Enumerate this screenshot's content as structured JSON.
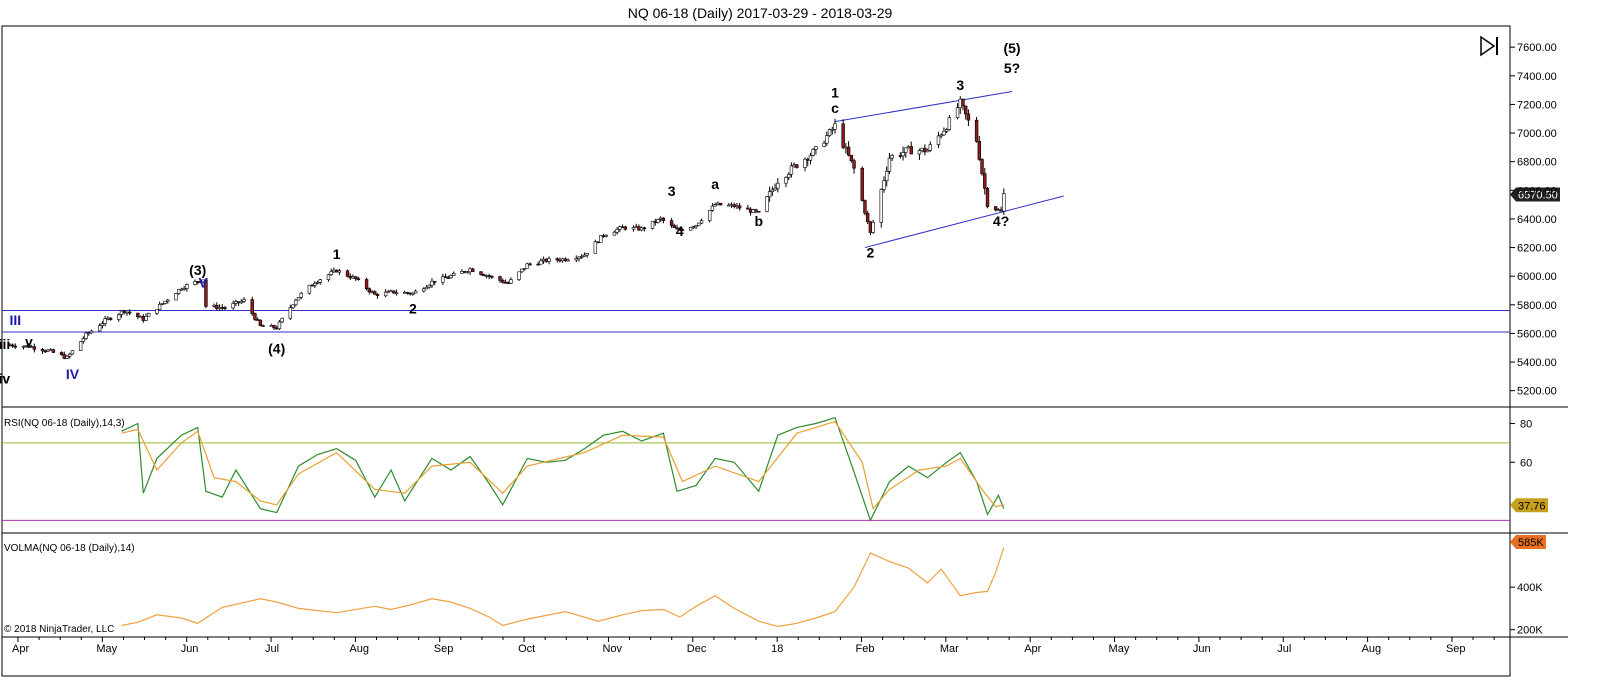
{
  "header": {
    "title": "NQ 06-18 (Daily)  2017-03-29 - 2018-03-29"
  },
  "toolbar": {
    "scroll_end_icon": "scroll-to-end-icon"
  },
  "copyright": "© 2018 NinjaTrader, LLC",
  "colors": {
    "frame": "#000000",
    "candle_up": "#ffffff",
    "candle_down": "#8b1a1a",
    "wick": "#000000",
    "channel": "#3030c8",
    "rsi": "#2e8b2e",
    "rsi_avg": "#e8a030",
    "rsi_70": "#9bbb30",
    "rsi_30": "#b030b0",
    "volma": "#f0a040",
    "price_badge": "#222222",
    "rsi_badge": "#c8a020",
    "vol_badge": "#e87020"
  },
  "chart_data": [
    {
      "type": "candlestick",
      "panel": "price",
      "title": "NQ 06-18 (Daily)  2017-03-29 - 2018-03-29",
      "x_labels": [
        "Apr",
        "May",
        "Jun",
        "Jul",
        "Aug",
        "Sep",
        "Oct",
        "Nov",
        "Dec",
        "18",
        "Feb",
        "Mar",
        "Apr",
        "May",
        "Jun",
        "Jul",
        "Aug",
        "Sep"
      ],
      "y_ticks": [
        "7600.00",
        "7400.00",
        "7200.00",
        "7000.00",
        "6800.00",
        "6600.00",
        "6400.00",
        "6200.00",
        "6000.00",
        "5800.00",
        "5600.00",
        "5400.00",
        "5200.00"
      ],
      "ylim": [
        5100,
        7720
      ],
      "last_price": "6570.50",
      "close_path": [
        [
          "2017-03-29",
          5520
        ],
        [
          "2017-04-05",
          5510
        ],
        [
          "2017-04-12",
          5480
        ],
        [
          "2017-04-19",
          5430
        ],
        [
          "2017-04-26",
          5590
        ],
        [
          "2017-05-03",
          5690
        ],
        [
          "2017-05-10",
          5760
        ],
        [
          "2017-05-17",
          5700
        ],
        [
          "2017-05-24",
          5810
        ],
        [
          "2017-05-31",
          5920
        ],
        [
          "2017-06-08",
          5980
        ],
        [
          "2017-06-09",
          5790
        ],
        [
          "2017-06-16",
          5780
        ],
        [
          "2017-06-23",
          5830
        ],
        [
          "2017-06-29",
          5650
        ],
        [
          "2017-07-05",
          5640
        ],
        [
          "2017-07-12",
          5840
        ],
        [
          "2017-07-19",
          5960
        ],
        [
          "2017-07-27",
          6040
        ],
        [
          "2017-08-03",
          5980
        ],
        [
          "2017-08-10",
          5870
        ],
        [
          "2017-08-17",
          5890
        ],
        [
          "2017-08-24",
          5880
        ],
        [
          "2017-08-31",
          5960
        ],
        [
          "2017-09-07",
          6000
        ],
        [
          "2017-09-14",
          6050
        ],
        [
          "2017-09-21",
          6000
        ],
        [
          "2017-09-28",
          5950
        ],
        [
          "2017-10-05",
          6080
        ],
        [
          "2017-10-12",
          6110
        ],
        [
          "2017-10-19",
          6120
        ],
        [
          "2017-10-26",
          6150
        ],
        [
          "2017-11-02",
          6290
        ],
        [
          "2017-11-09",
          6340
        ],
        [
          "2017-11-16",
          6330
        ],
        [
          "2017-11-23",
          6400
        ],
        [
          "2017-11-29",
          6320
        ],
        [
          "2017-12-06",
          6360
        ],
        [
          "2017-12-13",
          6500
        ],
        [
          "2017-12-20",
          6490
        ],
        [
          "2017-12-29",
          6440
        ],
        [
          "2018-01-05",
          6670
        ],
        [
          "2018-01-12",
          6780
        ],
        [
          "2018-01-19",
          6880
        ],
        [
          "2018-01-26",
          7050
        ],
        [
          "2018-02-02",
          6750
        ],
        [
          "2018-02-08",
          6300
        ],
        [
          "2018-02-15",
          6830
        ],
        [
          "2018-02-22",
          6880
        ],
        [
          "2018-03-01",
          6880
        ],
        [
          "2018-03-08",
          7050
        ],
        [
          "2018-03-13",
          7210
        ],
        [
          "2018-03-19",
          6950
        ],
        [
          "2018-03-23",
          6500
        ],
        [
          "2018-03-28",
          6450
        ],
        [
          "2018-03-29",
          6570
        ]
      ],
      "horizontal_lines": [
        5760,
        5610
      ],
      "channel_lines": [
        {
          "from": [
            "2018-01-26",
            7080
          ],
          "to": [
            "2018-04-01",
            7290
          ]
        },
        {
          "from": [
            "2018-02-06",
            6200
          ],
          "to": [
            "2018-04-20",
            6560
          ]
        }
      ],
      "annotations": [
        {
          "text": "(5)",
          "date": "2018-04-01",
          "price": 7560,
          "color": "black"
        },
        {
          "text": "5?",
          "date": "2018-04-01",
          "price": 7420,
          "color": "black"
        },
        {
          "text": "3",
          "date": "2018-03-13",
          "price": 7300,
          "color": "black"
        },
        {
          "text": "1",
          "date": "2018-01-26",
          "price": 7250,
          "color": "black"
        },
        {
          "text": "c",
          "date": "2018-01-26",
          "price": 7140,
          "color": "black"
        },
        {
          "text": "a",
          "date": "2017-12-13",
          "price": 6610,
          "color": "black"
        },
        {
          "text": "3",
          "date": "2017-11-27",
          "price": 6560,
          "color": "black"
        },
        {
          "text": "4",
          "date": "2017-11-30",
          "price": 6280,
          "color": "black"
        },
        {
          "text": "b",
          "date": "2017-12-29",
          "price": 6350,
          "color": "black"
        },
        {
          "text": "2",
          "date": "2018-02-08",
          "price": 6130,
          "color": "black"
        },
        {
          "text": "4?",
          "date": "2018-03-28",
          "price": 6350,
          "color": "black"
        },
        {
          "text": "1",
          "date": "2017-07-27",
          "price": 6120,
          "color": "black"
        },
        {
          "text": "2",
          "date": "2017-08-24",
          "price": 5740,
          "color": "black"
        },
        {
          "text": "(3)",
          "date": "2017-06-06",
          "price": 6010,
          "color": "black"
        },
        {
          "text": "V",
          "date": "2017-06-08",
          "price": 5920,
          "color": "blue"
        },
        {
          "text": "(4)",
          "date": "2017-07-05",
          "price": 5460,
          "color": "black"
        },
        {
          "text": "III",
          "date": "2017-03-31",
          "price": 5660,
          "color": "blue"
        },
        {
          "text": "iii",
          "date": "2017-03-27",
          "price": 5490,
          "color": "black"
        },
        {
          "text": "v",
          "date": "2017-04-05",
          "price": 5510,
          "color": "black"
        },
        {
          "text": "iv",
          "date": "2017-03-27",
          "price": 5250,
          "color": "black"
        },
        {
          "text": "IV",
          "date": "2017-04-21",
          "price": 5280,
          "color": "blue"
        }
      ]
    },
    {
      "type": "line",
      "panel": "rsi",
      "title": "RSI(NQ 06-18 (Daily),14,3)",
      "y_ticks": [
        "80",
        "60"
      ],
      "ylim": [
        25,
        87
      ],
      "levels": [
        70,
        30
      ],
      "last_value": "37.76",
      "series": [
        {
          "values": [
            [
              "2017-05-09",
              76
            ],
            [
              "2017-05-12",
              78
            ],
            [
              "2017-05-15",
              80
            ],
            [
              "2017-05-17",
              44
            ],
            [
              "2017-05-22",
              62
            ],
            [
              "2017-05-31",
              74
            ],
            [
              "2017-06-06",
              78
            ],
            [
              "2017-06-09",
              45
            ],
            [
              "2017-06-15",
              42
            ],
            [
              "2017-06-20",
              56
            ],
            [
              "2017-06-29",
              36
            ],
            [
              "2017-07-05",
              34
            ],
            [
              "2017-07-13",
              58
            ],
            [
              "2017-07-20",
              64
            ],
            [
              "2017-07-27",
              67
            ],
            [
              "2017-08-03",
              61
            ],
            [
              "2017-08-10",
              42
            ],
            [
              "2017-08-16",
              56
            ],
            [
              "2017-08-21",
              40
            ],
            [
              "2017-08-31",
              62
            ],
            [
              "2017-09-07",
              56
            ],
            [
              "2017-09-14",
              63
            ],
            [
              "2017-09-21",
              49
            ],
            [
              "2017-09-26",
              38
            ],
            [
              "2017-10-05",
              62
            ],
            [
              "2017-10-12",
              60
            ],
            [
              "2017-10-19",
              61
            ],
            [
              "2017-10-26",
              67
            ],
            [
              "2017-11-02",
              74
            ],
            [
              "2017-11-09",
              76
            ],
            [
              "2017-11-16",
              71
            ],
            [
              "2017-11-24",
              75
            ],
            [
              "2017-11-29",
              45
            ],
            [
              "2017-12-06",
              48
            ],
            [
              "2017-12-13",
              62
            ],
            [
              "2017-12-20",
              60
            ],
            [
              "2017-12-29",
              45
            ],
            [
              "2018-01-05",
              74
            ],
            [
              "2018-01-12",
              78
            ],
            [
              "2018-01-19",
              80
            ],
            [
              "2018-01-26",
              83
            ],
            [
              "2018-02-02",
              55
            ],
            [
              "2018-02-08",
              30
            ],
            [
              "2018-02-15",
              50
            ],
            [
              "2018-02-22",
              58
            ],
            [
              "2018-03-01",
              52
            ],
            [
              "2018-03-08",
              60
            ],
            [
              "2018-03-13",
              65
            ],
            [
              "2018-03-19",
              50
            ],
            [
              "2018-03-23",
              33
            ],
            [
              "2018-03-27",
              43
            ],
            [
              "2018-03-29",
              36
            ]
          ]
        },
        {
          "values": [
            [
              "2017-05-09",
              75
            ],
            [
              "2017-05-15",
              77
            ],
            [
              "2017-05-22",
              56
            ],
            [
              "2017-05-31",
              70
            ],
            [
              "2017-06-06",
              76
            ],
            [
              "2017-06-12",
              52
            ],
            [
              "2017-06-20",
              50
            ],
            [
              "2017-06-29",
              40
            ],
            [
              "2017-07-05",
              38
            ],
            [
              "2017-07-13",
              54
            ],
            [
              "2017-07-27",
              65
            ],
            [
              "2017-08-10",
              46
            ],
            [
              "2017-08-21",
              44
            ],
            [
              "2017-08-31",
              58
            ],
            [
              "2017-09-14",
              60
            ],
            [
              "2017-09-26",
              44
            ],
            [
              "2017-10-05",
              58
            ],
            [
              "2017-10-26",
              65
            ],
            [
              "2017-11-09",
              74
            ],
            [
              "2017-11-24",
              73
            ],
            [
              "2017-12-01",
              50
            ],
            [
              "2017-12-13",
              58
            ],
            [
              "2017-12-29",
              50
            ],
            [
              "2018-01-12",
              75
            ],
            [
              "2018-01-26",
              81
            ],
            [
              "2018-02-05",
              60
            ],
            [
              "2018-02-09",
              36
            ],
            [
              "2018-02-15",
              46
            ],
            [
              "2018-02-26",
              56
            ],
            [
              "2018-03-08",
              58
            ],
            [
              "2018-03-13",
              62
            ],
            [
              "2018-03-21",
              46
            ],
            [
              "2018-03-26",
              37
            ],
            [
              "2018-03-29",
              38
            ]
          ]
        }
      ]
    },
    {
      "type": "line",
      "panel": "volma",
      "title": "VOLMA(NQ 06-18 (Daily),14)",
      "y_ticks": [
        "400K",
        "200K"
      ],
      "ylim": [
        180000,
        640000
      ],
      "last_value": "585K",
      "series": [
        {
          "values": [
            [
              "2017-05-09",
              220000
            ],
            [
              "2017-05-15",
              235000
            ],
            [
              "2017-05-22",
              270000
            ],
            [
              "2017-05-31",
              255000
            ],
            [
              "2017-06-06",
              230000
            ],
            [
              "2017-06-15",
              305000
            ],
            [
              "2017-06-29",
              345000
            ],
            [
              "2017-07-05",
              330000
            ],
            [
              "2017-07-13",
              300000
            ],
            [
              "2017-07-27",
              280000
            ],
            [
              "2017-08-10",
              310000
            ],
            [
              "2017-08-16",
              295000
            ],
            [
              "2017-08-24",
              320000
            ],
            [
              "2017-08-31",
              345000
            ],
            [
              "2017-09-07",
              330000
            ],
            [
              "2017-09-14",
              300000
            ],
            [
              "2017-09-21",
              260000
            ],
            [
              "2017-09-26",
              220000
            ],
            [
              "2017-10-05",
              250000
            ],
            [
              "2017-10-19",
              285000
            ],
            [
              "2017-10-31",
              240000
            ],
            [
              "2017-11-09",
              270000
            ],
            [
              "2017-11-16",
              290000
            ],
            [
              "2017-11-24",
              295000
            ],
            [
              "2017-11-30",
              260000
            ],
            [
              "2017-12-06",
              310000
            ],
            [
              "2017-12-13",
              360000
            ],
            [
              "2017-12-20",
              300000
            ],
            [
              "2017-12-29",
              240000
            ],
            [
              "2018-01-05",
              215000
            ],
            [
              "2018-01-12",
              230000
            ],
            [
              "2018-01-19",
              255000
            ],
            [
              "2018-01-26",
              285000
            ],
            [
              "2018-02-02",
              400000
            ],
            [
              "2018-02-08",
              560000
            ],
            [
              "2018-02-15",
              520000
            ],
            [
              "2018-02-22",
              490000
            ],
            [
              "2018-03-01",
              420000
            ],
            [
              "2018-03-06",
              485000
            ],
            [
              "2018-03-13",
              360000
            ],
            [
              "2018-03-19",
              375000
            ],
            [
              "2018-03-23",
              380000
            ],
            [
              "2018-03-26",
              470000
            ],
            [
              "2018-03-29",
              585000
            ]
          ]
        }
      ]
    }
  ]
}
